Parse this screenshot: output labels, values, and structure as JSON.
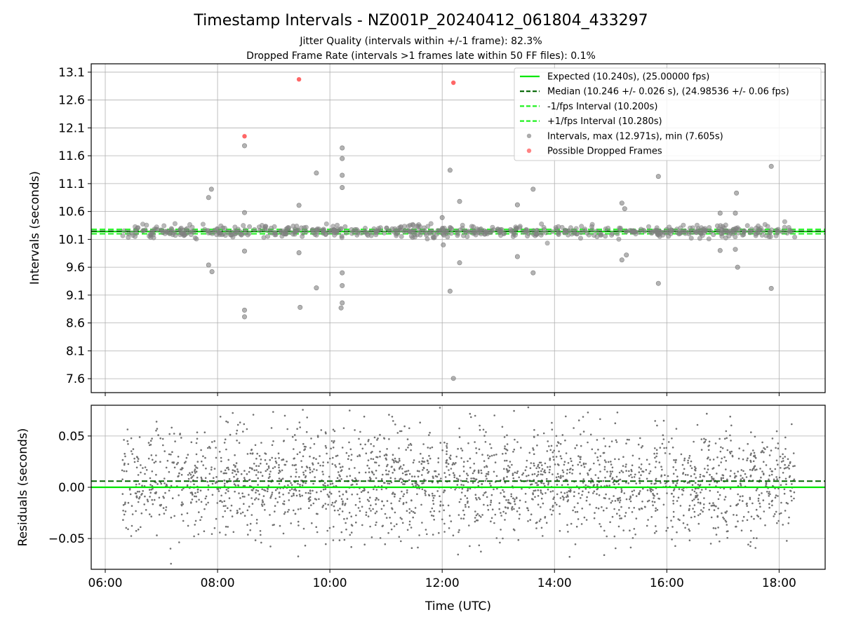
{
  "chart_data": {
    "type": "scatter",
    "title": "Timestamp Intervals - NZ001P_20240412_061804_433297",
    "subtitle_lines": [
      "Jitter Quality (intervals within +/-1 frame): 82.3%",
      "Dropped Frame Rate (intervals >1 frames late within 50 FF files): 0.1%"
    ],
    "xlabel": "Time (UTC)",
    "x_ticks": [
      "06:00",
      "08:00",
      "10:00",
      "12:00",
      "14:00",
      "16:00",
      "18:00"
    ],
    "xlim_hours": [
      5.75,
      18.82
    ],
    "data_x_range_hours": [
      6.3,
      18.28
    ],
    "colors": {
      "expected": "#00e600",
      "median": "#006400",
      "interval": "#21f221",
      "points": "#808080",
      "dropped": "#ff4040"
    },
    "top_panel": {
      "ylabel": "Intervals (seconds)",
      "ylim": [
        7.35,
        13.25
      ],
      "y_ticks": [
        "7.6",
        "8.1",
        "8.6",
        "9.1",
        "9.6",
        "10.1",
        "10.6",
        "11.1",
        "11.6",
        "12.1",
        "12.6",
        "13.1"
      ],
      "expected_interval": 10.24,
      "median_interval": 10.246,
      "minus_interval": 10.2,
      "plus_interval": 10.28,
      "max_interval": 12.971,
      "min_interval": 7.605,
      "legend": [
        {
          "label": "Expected (10.240s), (25.00000 fps)",
          "style": "solid-line",
          "color": "#00e600"
        },
        {
          "label": "Median (10.246 +/- 0.026 s), (24.98536 +/- 0.06 fps)",
          "style": "dashed-line",
          "color": "#006400"
        },
        {
          "label": "-1/fps Interval (10.200s)",
          "style": "dashed-line",
          "color": "#21f221"
        },
        {
          "label": "+1/fps Interval (10.280s)",
          "style": "dashed-line",
          "color": "#21f221"
        },
        {
          "label": "Intervals, max (12.971s), min (7.605s)",
          "style": "point",
          "color": "#808080"
        },
        {
          "label": "Possible Dropped Frames",
          "style": "point",
          "color": "#ff4040"
        }
      ],
      "legend_placement": "top-right",
      "outliers": [
        [
          7.84,
          10.85
        ],
        [
          7.89,
          11.0
        ],
        [
          7.84,
          9.64
        ],
        [
          7.9,
          9.52
        ],
        [
          8.48,
          11.78
        ],
        [
          8.48,
          10.58
        ],
        [
          8.48,
          9.89
        ],
        [
          8.48,
          8.83
        ],
        [
          8.48,
          8.71
        ],
        [
          9.45,
          10.71
        ],
        [
          9.45,
          9.86
        ],
        [
          9.47,
          8.88
        ],
        [
          9.76,
          11.29
        ],
        [
          9.76,
          9.23
        ],
        [
          10.22,
          11.74
        ],
        [
          10.22,
          11.55
        ],
        [
          10.22,
          11.25
        ],
        [
          10.22,
          11.03
        ],
        [
          10.22,
          9.5
        ],
        [
          10.22,
          9.27
        ],
        [
          10.22,
          8.96
        ],
        [
          10.2,
          8.87
        ],
        [
          12.0,
          10.49
        ],
        [
          12.02,
          10.0
        ],
        [
          12.14,
          11.34
        ],
        [
          12.14,
          9.17
        ],
        [
          12.31,
          10.78
        ],
        [
          12.31,
          9.68
        ],
        [
          12.2,
          7.605
        ],
        [
          13.34,
          10.72
        ],
        [
          13.34,
          9.79
        ],
        [
          13.62,
          11.0
        ],
        [
          13.62,
          9.5
        ],
        [
          15.2,
          10.75
        ],
        [
          15.25,
          10.65
        ],
        [
          15.2,
          9.73
        ],
        [
          15.28,
          9.82
        ],
        [
          15.85,
          11.23
        ],
        [
          15.85,
          9.31
        ],
        [
          16.95,
          10.57
        ],
        [
          16.95,
          9.9
        ],
        [
          17.24,
          10.93
        ],
        [
          17.22,
          10.57
        ],
        [
          17.22,
          9.92
        ],
        [
          17.26,
          9.6
        ],
        [
          17.86,
          11.41
        ],
        [
          17.86,
          9.22
        ]
      ],
      "dropped_frames": [
        [
          8.48,
          11.95
        ],
        [
          9.45,
          12.971
        ],
        [
          12.2,
          12.91
        ]
      ]
    },
    "bottom_panel": {
      "ylabel": "Residuals (seconds)",
      "ylim": [
        -0.08,
        0.08
      ],
      "y_ticks": [
        "−0.05",
        "0.00",
        "0.05"
      ],
      "expected_residual": 0.0,
      "median_residual": 0.006,
      "residual_spread_std": 0.026
    }
  }
}
